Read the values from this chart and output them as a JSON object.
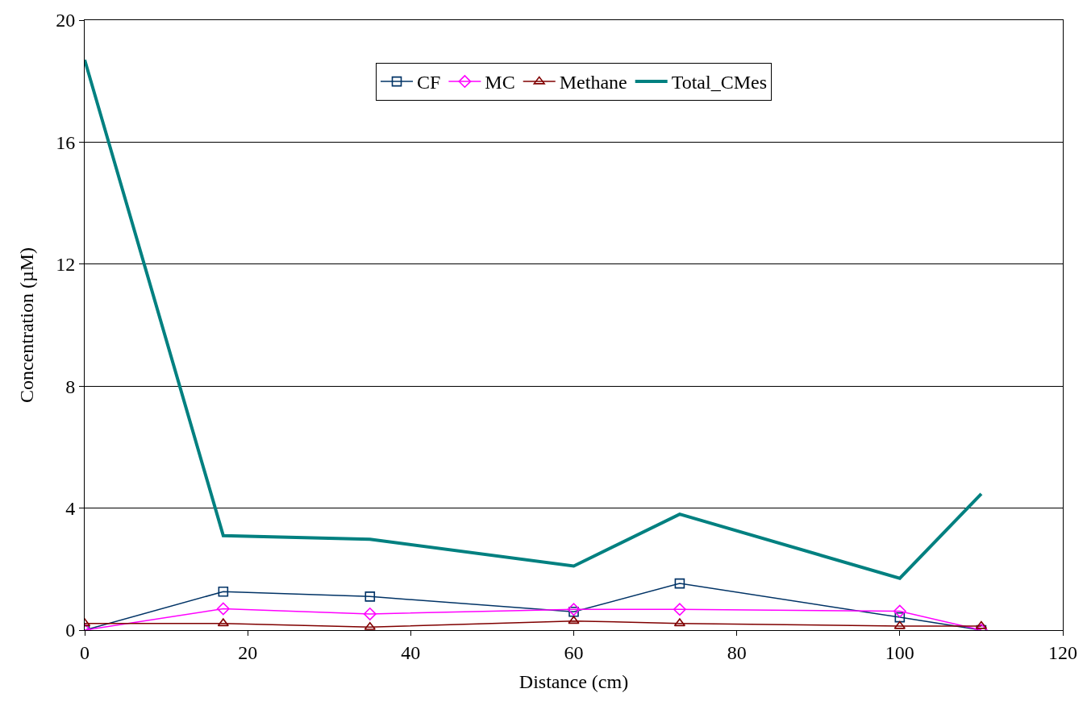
{
  "chart_data": {
    "type": "line",
    "xlabel": "Distance (cm)",
    "ylabel": "Concentration (µM)",
    "x": [
      0,
      17,
      35,
      60,
      73,
      100,
      110
    ],
    "series": [
      {
        "name": "CF",
        "color": "#003366",
        "marker": "square",
        "values": [
          0,
          1.26,
          1.1,
          0.6,
          1.53,
          0.42,
          0
        ]
      },
      {
        "name": "MC",
        "color": "#ff00ff",
        "marker": "diamond",
        "values": [
          0,
          0.7,
          0.53,
          0.68,
          0.68,
          0.62,
          0
        ]
      },
      {
        "name": "Methane",
        "color": "#800000",
        "marker": "triangle",
        "values": [
          0.22,
          0.22,
          0.1,
          0.3,
          0.22,
          0.13,
          0.13
        ]
      },
      {
        "name": "Total_CMes",
        "color": "#008080",
        "marker": "none",
        "values": [
          18.7,
          3.1,
          2.98,
          2.1,
          3.8,
          1.7,
          4.47
        ]
      }
    ],
    "xlim": [
      0,
      120
    ],
    "xticks": [
      0,
      20,
      40,
      60,
      80,
      100,
      120
    ],
    "ylim": [
      0,
      20
    ],
    "yticks": [
      0,
      4,
      8,
      12,
      16,
      20
    ],
    "grid": "y",
    "legend": "top"
  }
}
